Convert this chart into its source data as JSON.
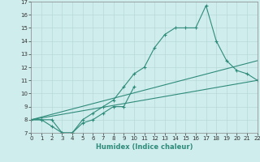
{
  "xlabel": "Humidex (Indice chaleur)",
  "x_values": [
    0,
    1,
    2,
    3,
    4,
    5,
    6,
    7,
    8,
    9,
    10,
    11,
    12,
    13,
    14,
    15,
    16,
    17,
    18,
    19,
    20,
    21,
    22
  ],
  "line1_y": [
    8,
    8,
    8,
    7,
    7,
    8,
    8.5,
    9,
    9.5,
    10.5,
    11.5,
    12,
    13.5,
    14.5,
    15,
    15,
    15,
    16.7,
    14,
    12.5,
    11.75,
    11.5,
    11
  ],
  "line2_x": [
    0,
    1,
    2,
    3,
    4,
    5,
    6,
    7,
    8,
    9,
    10
  ],
  "line2_y": [
    8,
    8,
    7.5,
    7,
    7,
    7.75,
    8,
    8.5,
    9,
    9,
    10.5
  ],
  "line3_x": [
    0,
    22
  ],
  "line3_y": [
    8,
    12.5
  ],
  "line4_x": [
    0,
    22
  ],
  "line4_y": [
    8,
    11
  ],
  "line_color": "#2e8b7a",
  "bg_color": "#d0eded",
  "grid_color": "#b8d8d8",
  "ylim": [
    7,
    17
  ],
  "xlim": [
    0,
    22
  ],
  "yticks": [
    7,
    8,
    9,
    10,
    11,
    12,
    13,
    14,
    15,
    16,
    17
  ],
  "xticks": [
    0,
    1,
    2,
    3,
    4,
    5,
    6,
    7,
    8,
    9,
    10,
    11,
    12,
    13,
    14,
    15,
    16,
    17,
    18,
    19,
    20,
    21,
    22
  ]
}
